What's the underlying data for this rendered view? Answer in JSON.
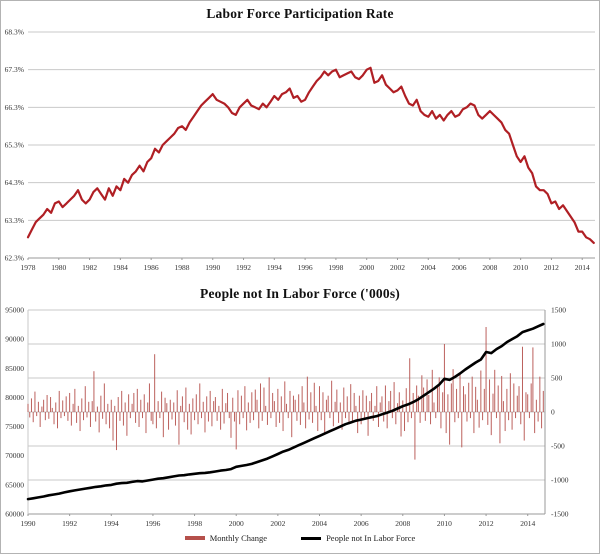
{
  "page": {
    "background": "#ffffff",
    "frame_border": "#b3b3b3"
  },
  "colors": {
    "participation_line": "#b01f24",
    "monthly_change_bar": "#b5504b",
    "not_in_labor_force_line": "#000000",
    "grid": "#c9c9c9",
    "axis": "#999999",
    "tick_text": "#333333"
  },
  "chart_data": [
    {
      "type": "line",
      "title": "Labor Force Participation Rate",
      "xlabel": "",
      "ylabel": "",
      "x_min": 1978,
      "x_max": 2014.83,
      "y_min": 62.3,
      "y_max": 68.3,
      "x_ticks": [
        1978,
        1980,
        1982,
        1984,
        1986,
        1988,
        1990,
        1992,
        1994,
        1996,
        1998,
        2000,
        2002,
        2004,
        2006,
        2008,
        2010,
        2012,
        2014
      ],
      "y_tick_values": [
        68.3,
        67.3,
        66.3,
        65.3,
        64.3,
        63.3,
        62.3
      ],
      "y_tick_labels": [
        "68.3%",
        "67.3%",
        "66.3%",
        "65.3%",
        "64.3%",
        "63.3%",
        "62.3%"
      ],
      "grid": true,
      "series": [
        {
          "name": "Labor Force Participation Rate",
          "color": "#b01f24",
          "x_start": 1978,
          "x_step": 0.25,
          "values": [
            62.85,
            63.05,
            63.25,
            63.35,
            63.45,
            63.6,
            63.5,
            63.75,
            63.8,
            63.65,
            63.75,
            63.85,
            63.95,
            64.1,
            63.85,
            63.75,
            63.85,
            64.05,
            64.15,
            64.0,
            63.85,
            64.15,
            63.95,
            64.2,
            64.1,
            64.4,
            64.3,
            64.5,
            64.6,
            64.75,
            64.6,
            64.85,
            64.95,
            65.2,
            65.1,
            65.3,
            65.4,
            65.5,
            65.6,
            65.75,
            65.8,
            65.7,
            65.9,
            66.05,
            66.2,
            66.35,
            66.45,
            66.55,
            66.65,
            66.5,
            66.45,
            66.4,
            66.3,
            66.15,
            66.1,
            66.3,
            66.4,
            66.5,
            66.35,
            66.3,
            66.25,
            66.4,
            66.3,
            66.45,
            66.6,
            66.5,
            66.65,
            66.7,
            66.8,
            66.55,
            66.6,
            66.45,
            66.5,
            66.7,
            66.85,
            67.0,
            67.1,
            67.25,
            67.15,
            67.25,
            67.3,
            67.1,
            67.15,
            67.2,
            67.25,
            67.1,
            67.05,
            67.15,
            67.3,
            67.35,
            66.95,
            67.0,
            67.15,
            66.9,
            66.8,
            66.7,
            66.75,
            66.85,
            66.6,
            66.4,
            66.35,
            66.5,
            66.2,
            66.1,
            66.05,
            66.2,
            66.0,
            66.1,
            65.95,
            66.1,
            66.2,
            66.05,
            66.1,
            66.25,
            66.3,
            66.4,
            66.35,
            66.1,
            66.0,
            66.1,
            66.2,
            66.1,
            66.0,
            65.9,
            65.7,
            65.6,
            65.3,
            65.0,
            64.85,
            65.0,
            64.7,
            64.55,
            64.2,
            64.1,
            64.1,
            64.0,
            63.75,
            63.8,
            63.6,
            63.7,
            63.55,
            63.4,
            63.25,
            63.0,
            63.0,
            62.85,
            62.8,
            62.7
          ]
        }
      ]
    },
    {
      "type": "bar+line",
      "title": "People not In Labor Force ('000s)",
      "x_min": 1990,
      "x_max": 2014.83,
      "x_ticks": [
        1990,
        1992,
        1994,
        1996,
        1998,
        2000,
        2002,
        2004,
        2006,
        2008,
        2010,
        2012,
        2014
      ],
      "left_axis": {
        "min": 60000,
        "max": 95000,
        "tick_values": [
          95000,
          90000,
          85000,
          80000,
          75000,
          70000,
          65000,
          60000
        ],
        "tick_labels": [
          "95000",
          "90000",
          "85000",
          "80000",
          "75000",
          "70000",
          "65000",
          "60000"
        ]
      },
      "right_axis": {
        "min": -1500,
        "max": 1500,
        "tick_values": [
          1500,
          1000,
          500,
          0,
          -500,
          -1000,
          -1500
        ],
        "tick_labels": [
          "1500",
          "1000",
          "500",
          "0",
          "-500",
          "-1000",
          "-1500"
        ]
      },
      "grid": true,
      "legend": [
        {
          "label": "Monthly Change",
          "color": "#b5504b"
        },
        {
          "label": "People not In Labor Force",
          "color": "#000000"
        }
      ],
      "series": [
        {
          "name": "Monthly Change",
          "type": "bar",
          "axis": "right",
          "color": "#b5504b",
          "x_start": 1990,
          "x_step": 0.08333,
          "values": [
            120,
            -80,
            200,
            -150,
            300,
            -60,
            150,
            -220,
            80,
            180,
            -120,
            250,
            -100,
            220,
            60,
            -180,
            140,
            -240,
            310,
            -90,
            170,
            -60,
            230,
            -130,
            280,
            -200,
            120,
            340,
            -160,
            90,
            -280,
            200,
            -120,
            380,
            -80,
            150,
            -220,
            160,
            600,
            -140,
            80,
            -300,
            240,
            -100,
            420,
            -180,
            120,
            -240,
            180,
            -420,
            90,
            -560,
            220,
            -130,
            310,
            -200,
            140,
            -350,
            260,
            -90,
            120,
            280,
            -160,
            340,
            -220,
            180,
            -90,
            260,
            -310,
            140,
            420,
            -130,
            -180,
            850,
            -240,
            160,
            -90,
            300,
            -370,
            210,
            130,
            -260,
            180,
            -110,
            140,
            -200,
            320,
            -480,
            90,
            230,
            -150,
            360,
            -260,
            120,
            -330,
            200,
            -120,
            260,
            -180,
            420,
            -90,
            150,
            -300,
            230,
            -140,
            310,
            -210,
            160,
            220,
            -130,
            90,
            -260,
            340,
            -170,
            130,
            280,
            -90,
            -380,
            210,
            -140,
            -550,
            320,
            -180,
            240,
            -90,
            380,
            -270,
            140,
            -160,
            290,
            -120,
            330,
            180,
            -240,
            420,
            -130,
            360,
            90,
            -190,
            510,
            -90,
            280,
            160,
            -220,
            340,
            -160,
            230,
            -280,
            450,
            120,
            -90,
            310,
            -370,
            240,
            180,
            -130,
            260,
            -190,
            380,
            140,
            -240,
            520,
            -110,
            290,
            -160,
            430,
            90,
            -280,
            380,
            -120,
            290,
            -330,
            180,
            240,
            -90,
            460,
            -210,
            150,
            330,
            -160,
            140,
            -260,
            360,
            -90,
            230,
            -180,
            410,
            -130,
            280,
            90,
            -310,
            240,
            -180,
            320,
            -90,
            240,
            -350,
            160,
            280,
            -130,
            90,
            380,
            -220,
            140,
            230,
            -140,
            390,
            -240,
            160,
            310,
            -90,
            440,
            -180,
            130,
            290,
            -360,
            170,
            -280,
            350,
            -150,
            790,
            -90,
            280,
            -700,
            390,
            240,
            -160,
            540,
            360,
            -130,
            480,
            250,
            -180,
            620,
            140,
            -90,
            380,
            510,
            -240,
            290,
            1000,
            -310,
            260,
            -480,
            420,
            630,
            -150,
            340,
            -90,
            560,
            -520,
            380,
            260,
            -140,
            430,
            -90,
            520,
            -310,
            370,
            180,
            -230,
            610,
            -120,
            340,
            1250,
            -190,
            480,
            -340,
            270,
            620,
            -90,
            390,
            -460,
            530,
            160,
            -280,
            340,
            -120,
            570,
            -260,
            420,
            -90,
            240,
            380,
            -180,
            960,
            -420,
            290,
            260,
            -90,
            420,
            950,
            -310,
            180,
            -140,
            520,
            -240,
            310
          ]
        },
        {
          "name": "People not In Labor Force",
          "type": "line",
          "axis": "left",
          "color": "#000000",
          "x_start": 1990,
          "x_step": 0.25,
          "values": [
            62550,
            62700,
            62850,
            63000,
            63200,
            63350,
            63500,
            63700,
            63900,
            64050,
            64200,
            64350,
            64500,
            64650,
            64750,
            64900,
            65000,
            65200,
            65300,
            65350,
            65500,
            65650,
            65600,
            65750,
            65900,
            66050,
            66150,
            66300,
            66450,
            66600,
            66650,
            66800,
            66900,
            67000,
            67050,
            67150,
            67300,
            67450,
            67550,
            67700,
            68100,
            68250,
            68400,
            68600,
            68900,
            69200,
            69500,
            69900,
            70300,
            70700,
            71000,
            71400,
            71800,
            72200,
            72600,
            73000,
            73400,
            73800,
            74200,
            74600,
            75000,
            75400,
            75700,
            76000,
            76200,
            76400,
            76600,
            76800,
            77100,
            77400,
            77700,
            78100,
            78500,
            78800,
            79200,
            79700,
            80300,
            80900,
            81500,
            82200,
            83200,
            83000,
            83500,
            84100,
            84800,
            85400,
            86000,
            86500,
            87800,
            87600,
            88300,
            88800,
            89500,
            90000,
            90500,
            91200,
            91500,
            91800,
            92200,
            92600
          ]
        }
      ]
    }
  ]
}
